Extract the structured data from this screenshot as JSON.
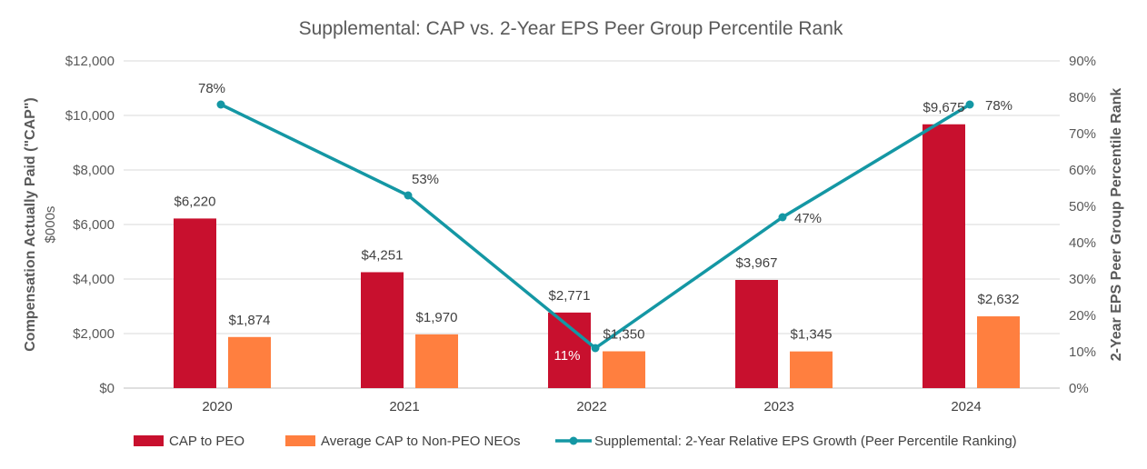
{
  "chart_data": {
    "type": "bar+line",
    "title": "Supplemental: CAP vs. 2-Year EPS Peer Group Percentile Rank",
    "categories": [
      "2020",
      "2021",
      "2022",
      "2023",
      "2024"
    ],
    "ylabel_left": "Compensation Actually Paid (\"CAP\")",
    "ylabel_left_sub": "$000s",
    "ylabel_right": "2-Year EPS Peer Group Percentile Rank",
    "ylim_left": [
      0,
      12000
    ],
    "ylim_right": [
      0,
      90
    ],
    "left_ticks": [
      "$0",
      "$2,000",
      "$4,000",
      "$6,000",
      "$8,000",
      "$10,000",
      "$12,000"
    ],
    "right_ticks": [
      "0%",
      "10%",
      "20%",
      "30%",
      "40%",
      "50%",
      "60%",
      "70%",
      "80%",
      "90%"
    ],
    "grid": true,
    "legend_position": "bottom",
    "series": [
      {
        "name": "CAP to PEO",
        "type": "bar",
        "axis": "left",
        "color": "#C8102E",
        "values": [
          6220,
          4251,
          2771,
          3967,
          9675
        ],
        "labels": [
          "$6,220",
          "$4,251",
          "$2,771",
          "$3,967",
          "$9,675"
        ]
      },
      {
        "name": "Average CAP to Non-PEO NEOs",
        "type": "bar",
        "axis": "left",
        "color": "#FF7F3F",
        "values": [
          1874,
          1970,
          1350,
          1345,
          2632
        ],
        "labels": [
          "$1,874",
          "$1,970",
          "$1,350",
          "$1,345",
          "$2,632"
        ]
      },
      {
        "name": "Supplemental: 2-Year Relative EPS Growth (Peer Percentile Ranking)",
        "type": "line",
        "axis": "right",
        "color": "#1497A4",
        "values": [
          78,
          53,
          11,
          47,
          78
        ],
        "labels": [
          "78%",
          "53%",
          "11%",
          "47%",
          "78%"
        ]
      }
    ]
  }
}
